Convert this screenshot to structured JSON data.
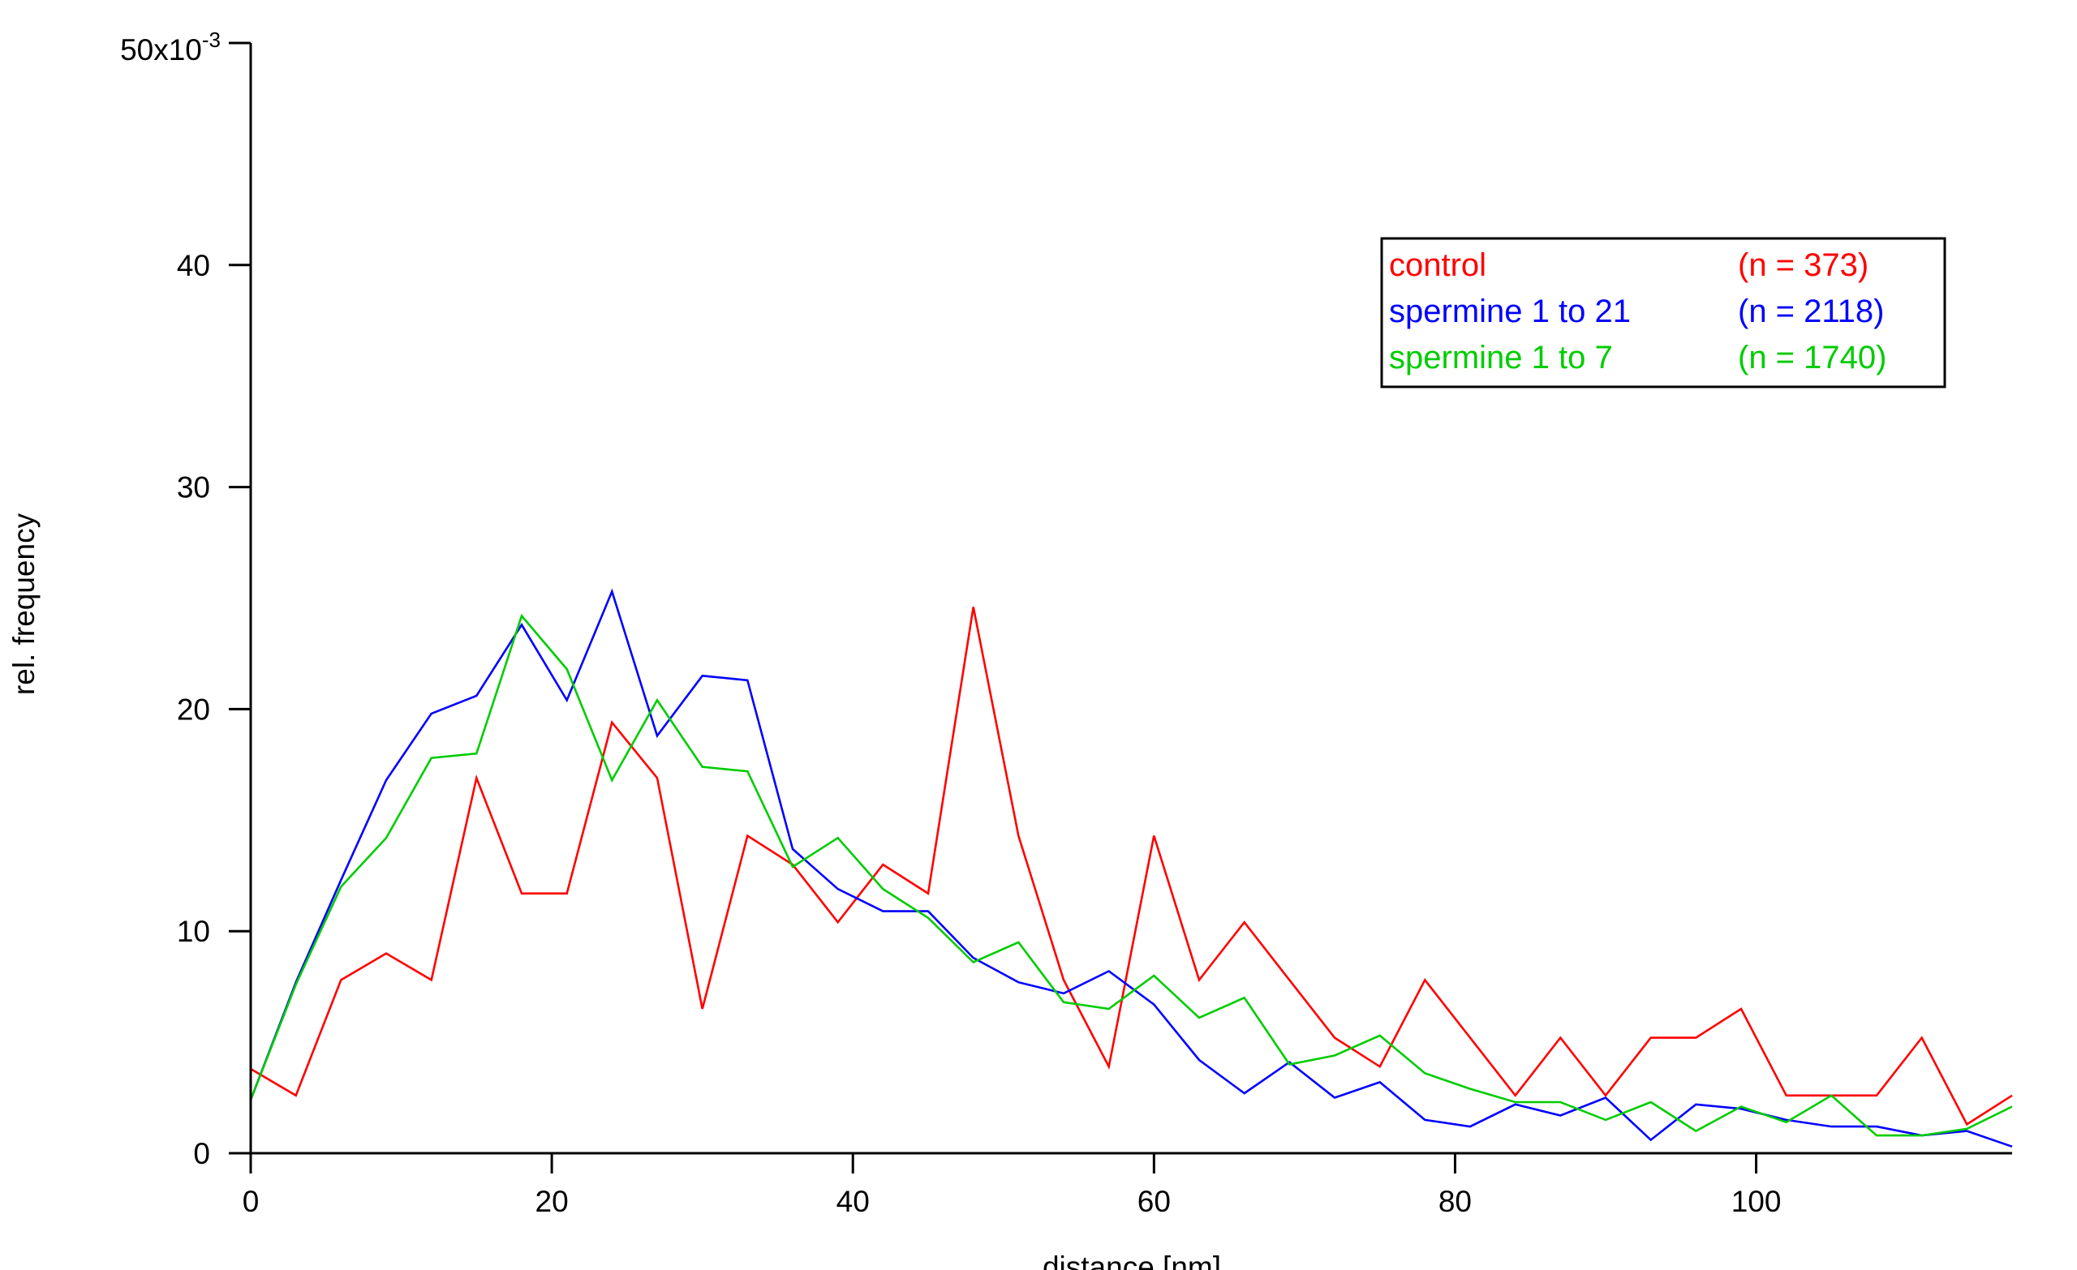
{
  "chart_data": {
    "type": "line",
    "title": "",
    "xlabel": "distance [nm]",
    "ylabel": "rel. frequency",
    "y_multiplier_label": "x10",
    "y_multiplier_exponent": "-3",
    "xlim": [
      0,
      117
    ],
    "ylim": [
      0,
      50
    ],
    "xticks": [
      0,
      20,
      40,
      60,
      80,
      100
    ],
    "yticks": [
      0,
      10,
      20,
      30,
      40,
      50
    ],
    "grid": false,
    "legend_position": "top-right",
    "x": [
      0,
      3,
      6,
      9,
      12,
      15,
      18,
      21,
      24,
      27,
      30,
      33,
      36,
      39,
      42,
      45,
      48,
      51,
      54,
      57,
      60,
      63,
      66,
      69,
      72,
      75,
      78,
      81,
      84,
      87,
      90,
      93,
      96,
      99,
      102,
      105,
      108,
      111,
      114,
      117
    ],
    "series": [
      {
        "name": "control",
        "n_label": "(n = 373)",
        "color": "#ff0000",
        "values": [
          3.8,
          2.6,
          7.8,
          9.0,
          7.8,
          16.9,
          11.7,
          11.7,
          19.4,
          16.9,
          6.5,
          14.3,
          13.0,
          10.4,
          13.0,
          11.7,
          24.6,
          14.3,
          7.8,
          3.9,
          14.3,
          7.8,
          10.4,
          7.8,
          5.2,
          3.9,
          7.8,
          5.2,
          2.6,
          5.2,
          2.6,
          5.2,
          5.2,
          6.5,
          2.6,
          2.6,
          2.6,
          5.2,
          1.3,
          2.6
        ]
      },
      {
        "name": "spermine 1 to 21",
        "n_label": "(n = 2118)",
        "color": "#0000ff",
        "values": [
          2.4,
          7.7,
          12.3,
          16.8,
          19.8,
          20.6,
          23.8,
          20.4,
          25.3,
          18.8,
          21.5,
          21.3,
          13.7,
          11.9,
          10.9,
          10.9,
          8.8,
          7.7,
          7.2,
          8.2,
          6.7,
          4.2,
          2.7,
          4.1,
          2.5,
          3.2,
          1.5,
          1.2,
          2.2,
          1.7,
          2.5,
          0.6,
          2.2,
          2.0,
          1.5,
          1.2,
          1.2,
          0.8,
          1.0,
          0.3
        ]
      },
      {
        "name": "spermine 1 to 7",
        "n_label": "(n = 1740)",
        "color": "#00cc00",
        "values": [
          2.4,
          7.6,
          12.0,
          14.2,
          17.8,
          18.0,
          24.2,
          21.8,
          16.8,
          20.4,
          17.4,
          17.2,
          12.9,
          14.2,
          11.9,
          10.6,
          8.6,
          9.5,
          6.8,
          6.5,
          8.0,
          6.1,
          7.0,
          4.0,
          4.4,
          5.3,
          3.6,
          2.9,
          2.3,
          2.3,
          1.5,
          2.3,
          1.0,
          2.1,
          1.4,
          2.6,
          0.8,
          0.8,
          1.1,
          2.1
        ]
      }
    ]
  }
}
